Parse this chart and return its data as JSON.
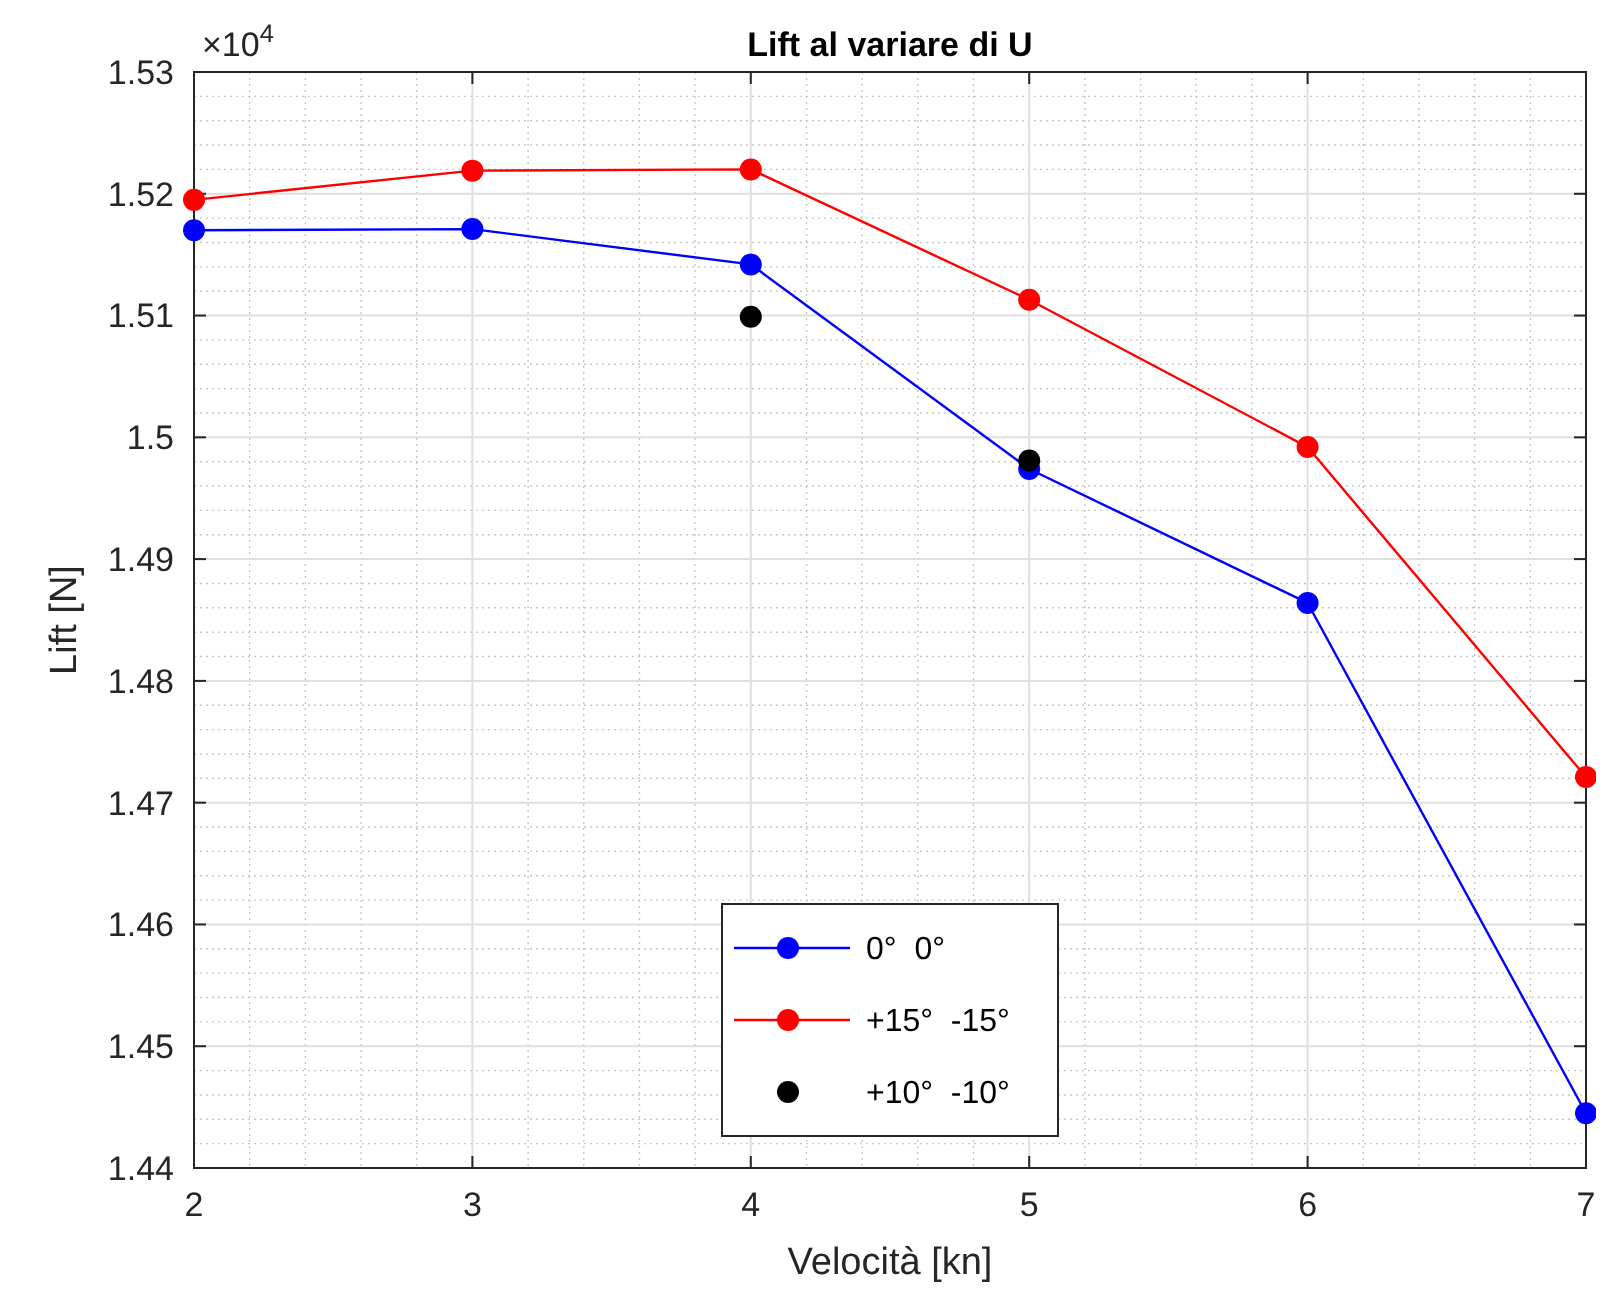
{
  "chart_data": {
    "type": "line",
    "title": "Lift al variare di U",
    "xlabel": "Velocità [kn]",
    "ylabel": "Lift [N]",
    "annotations": [
      "×10$^{4}$"
    ],
    "xlim": [
      2,
      7
    ],
    "xticks": [
      2,
      3,
      4,
      5,
      6,
      7
    ],
    "ylim": [
      1.44,
      1.53
    ],
    "yticks": [
      1.44,
      1.45,
      1.46,
      1.47,
      1.48,
      1.49,
      1.5,
      1.51,
      1.52,
      1.53
    ],
    "grid": true,
    "legend": "bottom",
    "marker": "circle",
    "line_style": "solid",
    "x": [
      2,
      3,
      4,
      5,
      6,
      7
    ],
    "series": [
      {
        "name": "0°  0°",
        "color": "#0000ff",
        "values": [
          1.517,
          1.5171,
          1.5142,
          1.4974,
          1.4864,
          1.4445
        ]
      },
      {
        "name": "+15°  -15°",
        "color": "#ff0000",
        "values": [
          1.5195,
          1.5219,
          1.522,
          1.5113,
          1.4992,
          1.4721
        ]
      },
      {
        "name": "+10°  -10°",
        "color": "#000000",
        "type": "scatter",
        "x": [
          4,
          5
        ],
        "values": [
          1.5099,
          1.4981
        ]
      }
    ]
  }
}
